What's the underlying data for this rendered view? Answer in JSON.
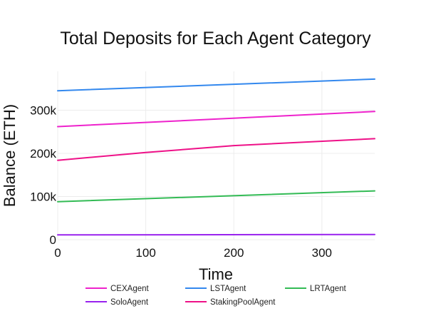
{
  "chart_data": {
    "type": "line",
    "title": "Total Deposits for Each Agent Category",
    "xlabel": "Time",
    "ylabel": "Balance (ETH)",
    "xlim": [
      0,
      360
    ],
    "ylim": [
      0,
      390000
    ],
    "xticks": [
      0,
      100,
      200,
      300
    ],
    "xtick_labels": [
      "0",
      "100",
      "200",
      "300"
    ],
    "yticks": [
      0,
      100000,
      200000,
      300000
    ],
    "ytick_labels": [
      "0",
      "100k",
      "200k",
      "300k"
    ],
    "grid": true,
    "legend_position": "bottom",
    "series": [
      {
        "name": "CEXAgent",
        "color": "#ee22cc",
        "x": [
          0,
          360
        ],
        "y": [
          262000,
          297000
        ]
      },
      {
        "name": "LSTAgent",
        "color": "#3388ee",
        "x": [
          0,
          360
        ],
        "y": [
          345000,
          372000
        ]
      },
      {
        "name": "LRTAgent",
        "color": "#33bb55",
        "x": [
          0,
          360
        ],
        "y": [
          88000,
          113000
        ]
      },
      {
        "name": "SoloAgent",
        "color": "#9922ee",
        "x": [
          0,
          360
        ],
        "y": [
          11000,
          12000
        ]
      },
      {
        "name": "StakingPoolAgent",
        "color": "#ee1188",
        "x": [
          0,
          100,
          200,
          360
        ],
        "y": [
          184000,
          202000,
          218000,
          234000
        ]
      }
    ]
  }
}
